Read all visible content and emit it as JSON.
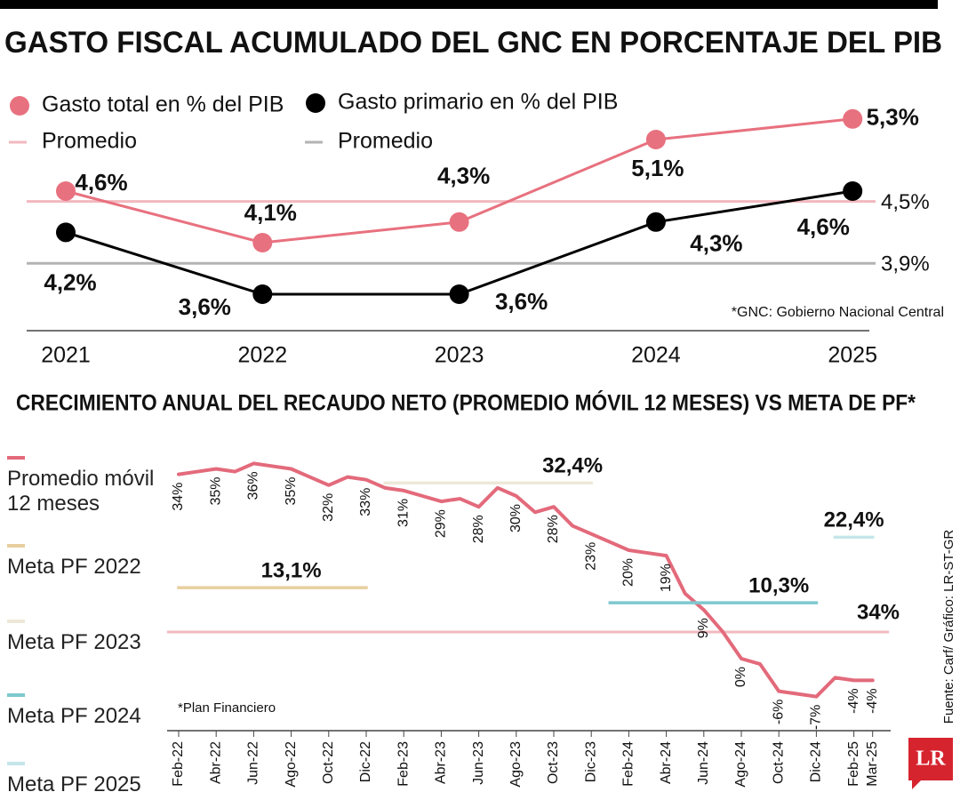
{
  "chart_data": [
    {
      "type": "line",
      "title": "GASTO FISCAL ACUMULADO DEL GNC EN PORCENTAJE DEL PIB",
      "categories": [
        "2021",
        "2022",
        "2023",
        "2024",
        "2025"
      ],
      "series": [
        {
          "name": "Gasto total en % del PIB",
          "color": "#e8717f",
          "values": [
            4.6,
            4.1,
            4.3,
            5.1,
            5.3
          ],
          "value_labels": [
            "4,6%",
            "4,1%",
            "4,3%",
            "5,1%",
            "5,3%"
          ]
        },
        {
          "name": "Gasto primario en % del PIB",
          "color": "#000000",
          "values": [
            4.2,
            3.6,
            3.6,
            4.3,
            4.6
          ],
          "value_labels": [
            "4,2%",
            "3,6%",
            "3,6%",
            "4,3%",
            "4,6%"
          ]
        }
      ],
      "reference_lines": [
        {
          "name": "Promedio",
          "color": "#f2b8bf",
          "value": 4.5,
          "label": "4,5%"
        },
        {
          "name": "Promedio",
          "color": "#b3b3b3",
          "value": 3.9,
          "label": "3,9%"
        }
      ],
      "ylim": [
        3.4,
        5.5
      ],
      "note": "*GNC: Gobierno Nacional Central"
    },
    {
      "type": "line",
      "title": "CRECIMIENTO ANUAL DEL RECAUDO NETO (PROMEDIO MÓVIL 12 MESES) VS META DE PF*",
      "categories": [
        "Feb-22",
        null,
        "Abr-22",
        null,
        "Jun-22",
        null,
        "Ago-22",
        null,
        "Oct-22",
        null,
        "Dic-22",
        null,
        "Feb-23",
        null,
        "Abr-23",
        null,
        "Jun-23",
        null,
        "Ago-23",
        null,
        "Oct-23",
        null,
        "Dic-23",
        null,
        "Feb-24",
        null,
        "Abr-24",
        null,
        "Jun-24",
        null,
        "Ago-24",
        null,
        "Oct-24",
        null,
        "Dic-24",
        null,
        "Feb-25",
        "Mar-25"
      ],
      "series": [
        {
          "name": "Promedio móvil 12 meses",
          "color": "#e36a7b",
          "values": [
            34,
            34.5,
            35,
            34.5,
            36,
            35.5,
            35,
            33.5,
            32,
            33.5,
            33,
            31.5,
            31,
            30,
            29,
            29.5,
            28,
            31.5,
            30,
            27,
            28,
            24.5,
            23,
            21.5,
            20,
            19.5,
            19,
            12,
            9,
            5,
            0,
            -1,
            -6,
            -6.5,
            -7,
            -3.5,
            -4,
            -4
          ],
          "value_labels": [
            "34%",
            null,
            "35%",
            null,
            "36%",
            null,
            "35%",
            null,
            "32%",
            null,
            "33%",
            null,
            "31%",
            null,
            "29%",
            null,
            "28%",
            null,
            "30%",
            null,
            "28%",
            null,
            "23%",
            null,
            "20%",
            null,
            "19%",
            null,
            "9%",
            null,
            "0%",
            null,
            "-6%",
            null,
            "-7%",
            null,
            "-4%",
            "-4%"
          ]
        },
        {
          "name": "Meta PF 2022",
          "color": "#e8cf9f",
          "values": [
            13.1,
            13.1,
            13.1,
            13.1,
            13.1,
            13.1,
            13.1,
            13.1,
            13.1,
            13.1,
            13.1,
            null,
            null,
            null,
            null,
            null,
            null,
            null,
            null,
            null,
            null,
            null,
            null,
            null,
            null,
            null,
            null,
            null,
            null,
            null,
            null,
            null,
            null,
            null,
            null,
            null,
            null,
            null
          ],
          "value_labels": [
            null,
            null,
            null,
            null,
            null,
            null,
            "13,1%",
            null,
            null,
            null,
            null,
            null,
            null,
            null,
            null,
            null,
            null,
            null,
            null,
            null,
            null,
            null,
            null,
            null,
            null,
            null,
            null,
            null,
            null,
            null,
            null,
            null,
            null,
            null,
            null,
            null,
            null,
            null
          ]
        },
        {
          "name": "Meta PF 2023",
          "color": "#ede8d8",
          "values": [
            null,
            null,
            null,
            null,
            null,
            null,
            null,
            null,
            null,
            null,
            null,
            32.4,
            32.4,
            32.4,
            32.4,
            32.4,
            32.4,
            32.4,
            32.4,
            32.4,
            32.4,
            32.4,
            32.4,
            null,
            null,
            null,
            null,
            null,
            null,
            null,
            null,
            null,
            null,
            null,
            null,
            null,
            null,
            null
          ],
          "value_labels": [
            null,
            null,
            null,
            null,
            null,
            null,
            null,
            null,
            null,
            null,
            null,
            null,
            null,
            null,
            null,
            null,
            null,
            null,
            null,
            null,
            null,
            "32,4%",
            null,
            null,
            null,
            null,
            null,
            null,
            null,
            null,
            null,
            null,
            null,
            null,
            null,
            null,
            null,
            null
          ]
        },
        {
          "name": "Meta PF 2024",
          "color": "#7ec8cf",
          "values": [
            null,
            null,
            null,
            null,
            null,
            null,
            null,
            null,
            null,
            null,
            null,
            null,
            null,
            null,
            null,
            null,
            null,
            null,
            null,
            null,
            null,
            null,
            null,
            10.3,
            10.3,
            10.3,
            10.3,
            10.3,
            10.3,
            10.3,
            10.3,
            10.3,
            10.3,
            10.3,
            10.3,
            null,
            null,
            null
          ],
          "value_labels": [
            null,
            null,
            null,
            null,
            null,
            null,
            null,
            null,
            null,
            null,
            null,
            null,
            null,
            null,
            null,
            null,
            null,
            null,
            null,
            null,
            null,
            null,
            null,
            null,
            null,
            null,
            null,
            null,
            null,
            null,
            null,
            null,
            "10,3%",
            null,
            null,
            null,
            null,
            null
          ]
        },
        {
          "name": "Meta PF 2025",
          "color": "#c5e6ea",
          "values": [
            null,
            null,
            null,
            null,
            null,
            null,
            null,
            null,
            null,
            null,
            null,
            null,
            null,
            null,
            null,
            null,
            null,
            null,
            null,
            null,
            null,
            null,
            null,
            null,
            null,
            null,
            null,
            null,
            null,
            null,
            null,
            null,
            null,
            null,
            null,
            22.4,
            22.4,
            22.4
          ],
          "value_labels": [
            null,
            null,
            null,
            null,
            null,
            null,
            null,
            null,
            null,
            null,
            null,
            null,
            null,
            null,
            null,
            null,
            null,
            null,
            null,
            null,
            null,
            null,
            null,
            null,
            null,
            null,
            null,
            null,
            null,
            null,
            null,
            null,
            null,
            null,
            null,
            null,
            "22,4%",
            null
          ]
        }
      ],
      "annotation": "34%",
      "ylim": [
        -10,
        38
      ],
      "note": "*Plan Financiero"
    }
  ],
  "source": "Fuente: Carf/ Gráfico: LR-ST-GR",
  "logo": "LR"
}
